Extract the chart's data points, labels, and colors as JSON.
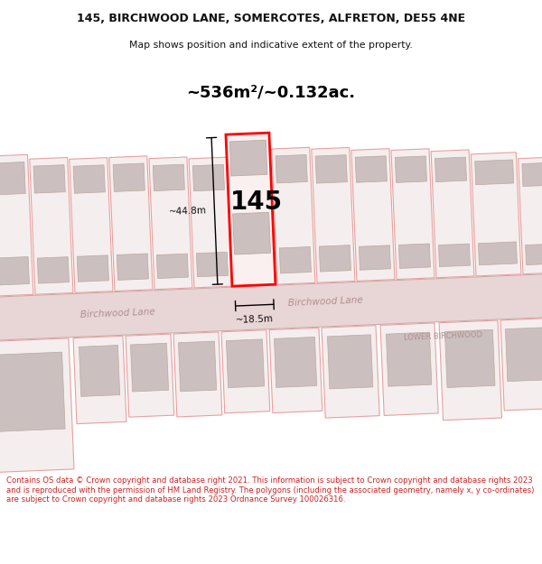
{
  "title_line1": "145, BIRCHWOOD LANE, SOMERCOTES, ALFRETON, DE55 4NE",
  "title_line2": "Map shows position and indicative extent of the property.",
  "area_text": "~536m²/~0.132ac.",
  "label_145": "145",
  "dim_height": "~44.8m",
  "dim_width": "~18.5m",
  "street_label_left": "Birchwood Lane",
  "street_label_road": "Birchwood Lane",
  "lower_birchwood": "LOWER BIRCHWOOD",
  "footer_text": "Contains OS data © Crown copyright and database right 2021. This information is subject to Crown copyright and database rights 2023 and is reproduced with the permission of HM Land Registry. The polygons (including the associated geometry, namely x, y co-ordinates) are subject to Crown copyright and database rights 2023 Ordnance Survey 100026316.",
  "map_bg": "#faf5f5",
  "road_fill": "#e8d5d5",
  "road_edge": "#c8a8a8",
  "plot_red": "#ff0000",
  "plot_pink": "#e8a0a0",
  "bld_fill": "#ccbfbf",
  "bld_edge": "#bbaaa0",
  "plot_fill": "#f5eeee",
  "footer_color": "#cc2222",
  "title_color": "#111111",
  "dim_color": "#111111",
  "street_color": "#b09090"
}
